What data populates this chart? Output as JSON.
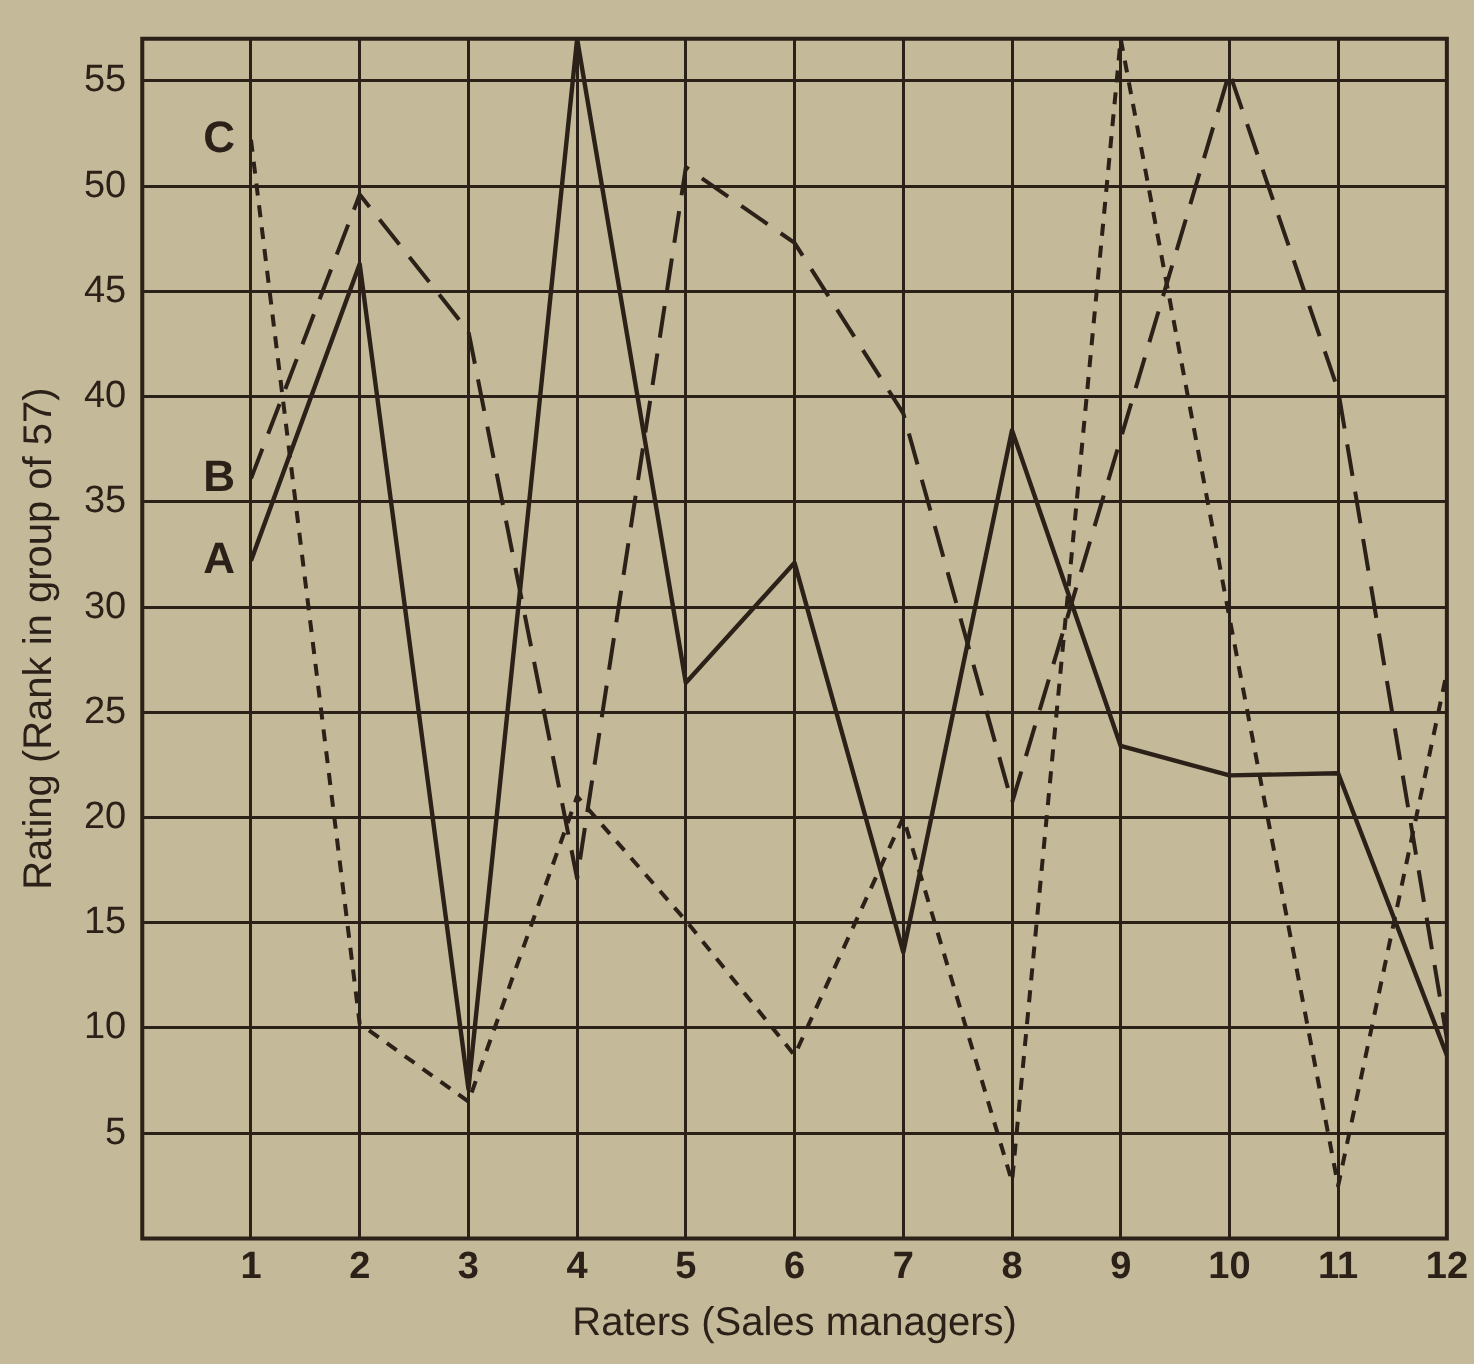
{
  "chart_data": {
    "type": "line",
    "xlabel": "Raters (Sales managers)",
    "ylabel": "Rating (Rank in group of 57)",
    "x": [
      1,
      2,
      3,
      4,
      5,
      6,
      7,
      8,
      9,
      10,
      11,
      12
    ],
    "series": [
      {
        "name": "A",
        "color": "#2b2118",
        "line_style": "solid",
        "values": [
          32.2,
          46.3,
          7.1,
          57,
          26.4,
          32.1,
          13.6,
          38.4,
          23.4,
          22,
          22.1,
          8.7
        ]
      },
      {
        "name": "B",
        "color": "#2b2118",
        "line_style": "dashed",
        "values": [
          36.1,
          49.6,
          43.1,
          17.1,
          50.9,
          47.3,
          39.2,
          20.7,
          38,
          55.4,
          40.3,
          9.5
        ]
      },
      {
        "name": "C",
        "color": "#2b2118",
        "line_style": "dotted",
        "values": [
          52.2,
          10.2,
          6.5,
          21,
          15.1,
          8.7,
          20,
          2.7,
          57,
          29.5,
          2.5,
          26.9
        ]
      }
    ],
    "xlim": [
      0,
      12
    ],
    "xticks": [
      1,
      2,
      3,
      4,
      5,
      6,
      7,
      8,
      9,
      10,
      11,
      12
    ],
    "ylim": [
      0,
      57
    ],
    "yticks": [
      5,
      10,
      15,
      20,
      25,
      30,
      35,
      40,
      45,
      50,
      55
    ],
    "grid": true,
    "legend": false,
    "marker": "none"
  }
}
